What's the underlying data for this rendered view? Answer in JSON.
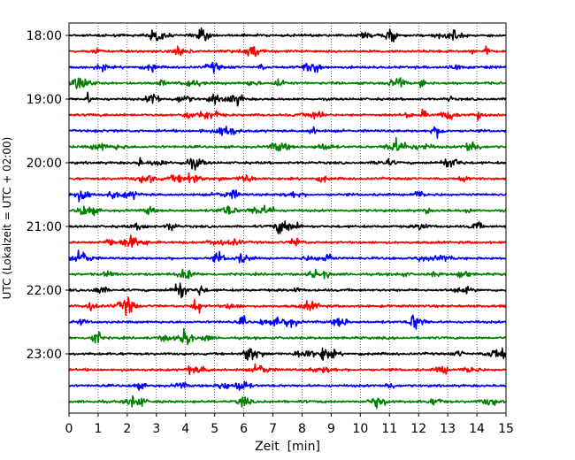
{
  "chart_data": {
    "type": "line",
    "title": "",
    "xlabel": "Zeit  [min]",
    "ylabel": "UTC (Lokalzeit = UTC + 02:00)",
    "xlim": [
      0,
      15
    ],
    "x_ticks": [
      "0",
      "1",
      "2",
      "3",
      "4",
      "5",
      "6",
      "7",
      "8",
      "9",
      "10",
      "11",
      "12",
      "13",
      "14",
      "15"
    ],
    "y_ticks": [
      "18:00",
      "19:00",
      "20:00",
      "21:00",
      "22:00",
      "23:00"
    ],
    "grid": "vertical dotted lines at each minute",
    "trace_colors": [
      "#000000",
      "#ff0000",
      "#0000ff",
      "#008000"
    ],
    "traces": [
      {
        "start": "18:00",
        "color": "#000000"
      },
      {
        "start": "18:15",
        "color": "#ff0000"
      },
      {
        "start": "18:30",
        "color": "#0000ff"
      },
      {
        "start": "18:45",
        "color": "#008000"
      },
      {
        "start": "19:00",
        "color": "#000000"
      },
      {
        "start": "19:15",
        "color": "#ff0000"
      },
      {
        "start": "19:30",
        "color": "#0000ff"
      },
      {
        "start": "19:45",
        "color": "#008000"
      },
      {
        "start": "20:00",
        "color": "#000000"
      },
      {
        "start": "20:15",
        "color": "#ff0000"
      },
      {
        "start": "20:30",
        "color": "#0000ff"
      },
      {
        "start": "20:45",
        "color": "#008000"
      },
      {
        "start": "21:00",
        "color": "#000000"
      },
      {
        "start": "21:15",
        "color": "#ff0000"
      },
      {
        "start": "21:30",
        "color": "#0000ff"
      },
      {
        "start": "21:45",
        "color": "#008000"
      },
      {
        "start": "22:00",
        "color": "#000000"
      },
      {
        "start": "22:15",
        "color": "#ff0000"
      },
      {
        "start": "22:30",
        "color": "#0000ff"
      },
      {
        "start": "22:45",
        "color": "#008000"
      },
      {
        "start": "23:00",
        "color": "#000000"
      },
      {
        "start": "23:15",
        "color": "#ff0000"
      },
      {
        "start": "23:30",
        "color": "#0000ff"
      },
      {
        "start": "23:45",
        "color": "#008000"
      }
    ]
  }
}
